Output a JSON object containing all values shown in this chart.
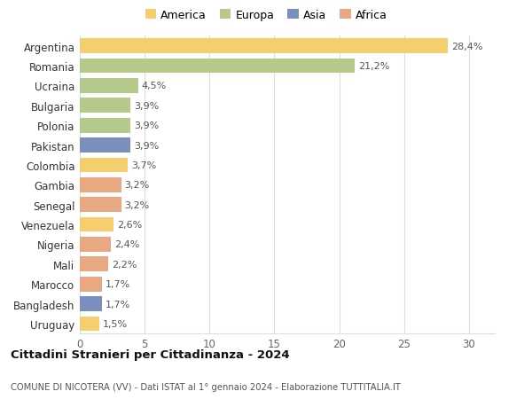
{
  "countries": [
    "Argentina",
    "Romania",
    "Ucraina",
    "Bulgaria",
    "Polonia",
    "Pakistan",
    "Colombia",
    "Gambia",
    "Senegal",
    "Venezuela",
    "Nigeria",
    "Mali",
    "Marocco",
    "Bangladesh",
    "Uruguay"
  ],
  "values": [
    28.4,
    21.2,
    4.5,
    3.9,
    3.9,
    3.9,
    3.7,
    3.2,
    3.2,
    2.6,
    2.4,
    2.2,
    1.7,
    1.7,
    1.5
  ],
  "labels": [
    "28,4%",
    "21,2%",
    "4,5%",
    "3,9%",
    "3,9%",
    "3,9%",
    "3,7%",
    "3,2%",
    "3,2%",
    "2,6%",
    "2,4%",
    "2,2%",
    "1,7%",
    "1,7%",
    "1,5%"
  ],
  "colors": [
    "#F5CE6E",
    "#B5C98A",
    "#B5C98A",
    "#B5C98A",
    "#B5C98A",
    "#7B8FBF",
    "#F5CE6E",
    "#E8A882",
    "#E8A882",
    "#F5CE6E",
    "#E8A882",
    "#E8A882",
    "#E8A882",
    "#7B8FBF",
    "#F5CE6E"
  ],
  "continents": [
    "America",
    "Europa",
    "Asia",
    "Africa"
  ],
  "legend_colors": [
    "#F5CE6E",
    "#B5C98A",
    "#7B8FBF",
    "#E8A882"
  ],
  "title": "Cittadini Stranieri per Cittadinanza - 2024",
  "subtitle": "COMUNE DI NICOTERA (VV) - Dati ISTAT al 1° gennaio 2024 - Elaborazione TUTTITALIA.IT",
  "xlim": [
    0,
    32
  ],
  "xticks": [
    0,
    5,
    10,
    15,
    20,
    25,
    30
  ],
  "background_color": "#ffffff",
  "grid_color": "#dddddd",
  "bar_height": 0.75
}
